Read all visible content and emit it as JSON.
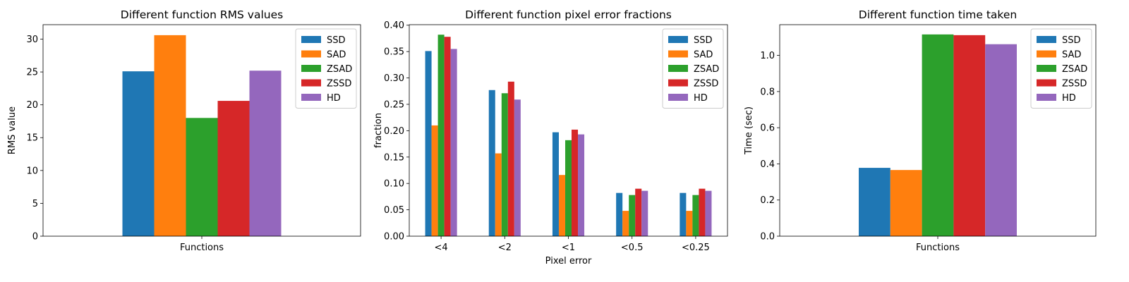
{
  "colors": {
    "SSD": "#1f77b4",
    "SAD": "#ff7f0e",
    "ZSAD": "#2ca02c",
    "ZSSD": "#d62728",
    "HD": "#9467bd"
  },
  "chart_data": [
    {
      "type": "bar",
      "title": "Different function RMS values",
      "xlabel": "",
      "ylabel": "RMS value",
      "categories": [
        "Functions"
      ],
      "series": [
        {
          "name": "SSD",
          "values": [
            25.1
          ]
        },
        {
          "name": "SAD",
          "values": [
            30.6
          ]
        },
        {
          "name": "ZSAD",
          "values": [
            18.0
          ]
        },
        {
          "name": "ZSSD",
          "values": [
            20.6
          ]
        },
        {
          "name": "HD",
          "values": [
            25.2
          ]
        }
      ],
      "ylim": [
        0,
        32.2
      ],
      "yticks": [
        0,
        5,
        10,
        15,
        20,
        25,
        30
      ],
      "ytick_labels": [
        "0",
        "5",
        "10",
        "15",
        "20",
        "25",
        "30"
      ],
      "group_width": 0.5,
      "grid": false,
      "legend": "top-right"
    },
    {
      "type": "bar",
      "title": "Different function pixel error fractions",
      "xlabel": "Pixel error",
      "ylabel": "fraction",
      "categories": [
        "<4",
        "<2",
        "<1",
        "<0.5",
        "<0.25"
      ],
      "series": [
        {
          "name": "SSD",
          "values": [
            0.351,
            0.277,
            0.197,
            0.082,
            0.082
          ]
        },
        {
          "name": "SAD",
          "values": [
            0.21,
            0.157,
            0.116,
            0.048,
            0.048
          ]
        },
        {
          "name": "ZSAD",
          "values": [
            0.382,
            0.271,
            0.182,
            0.078,
            0.078
          ]
        },
        {
          "name": "ZSSD",
          "values": [
            0.378,
            0.293,
            0.202,
            0.09,
            0.09
          ]
        },
        {
          "name": "HD",
          "values": [
            0.355,
            0.259,
            0.193,
            0.086,
            0.086
          ]
        }
      ],
      "ylim": [
        0,
        0.401
      ],
      "yticks": [
        0,
        0.05,
        0.1,
        0.15,
        0.2,
        0.25,
        0.3,
        0.35,
        0.4
      ],
      "ytick_labels": [
        "0.00",
        "0.05",
        "0.10",
        "0.15",
        "0.20",
        "0.25",
        "0.30",
        "0.35",
        "0.40"
      ],
      "group_width": 0.5,
      "grid": false,
      "legend": "top-right"
    },
    {
      "type": "bar",
      "title": "Different function time taken",
      "xlabel": "",
      "ylabel": "Time (sec)",
      "categories": [
        "Functions"
      ],
      "series": [
        {
          "name": "SSD",
          "values": [
            0.378
          ]
        },
        {
          "name": "SAD",
          "values": [
            0.366
          ]
        },
        {
          "name": "ZSAD",
          "values": [
            1.116
          ]
        },
        {
          "name": "ZSSD",
          "values": [
            1.112
          ]
        },
        {
          "name": "HD",
          "values": [
            1.062
          ]
        }
      ],
      "ylim": [
        0,
        1.17
      ],
      "yticks": [
        0,
        0.2,
        0.4,
        0.6,
        0.8,
        1.0
      ],
      "ytick_labels": [
        "0.0",
        "0.2",
        "0.4",
        "0.6",
        "0.8",
        "1.0"
      ],
      "group_width": 0.5,
      "grid": false,
      "legend": "top-right"
    }
  ]
}
